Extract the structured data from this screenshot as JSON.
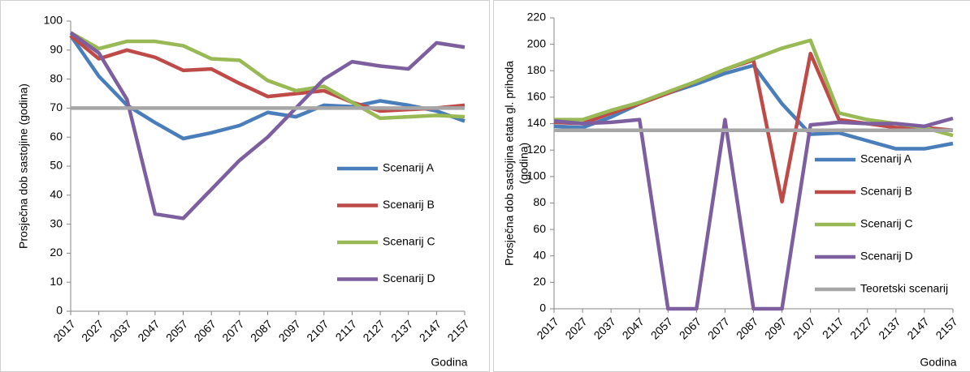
{
  "chart_data": [
    {
      "type": "line",
      "xlabel": "Godina",
      "ylabel": [
        "Prosječna dob sastojine (godina)"
      ],
      "categories": [
        "2017",
        "2027",
        "2037",
        "2047",
        "2057",
        "2067",
        "2077",
        "2087",
        "2097",
        "2107",
        "2117",
        "2127",
        "2137",
        "2147",
        "2157"
      ],
      "ylim": [
        0,
        100
      ],
      "yticks": [
        0,
        10,
        20,
        30,
        40,
        50,
        60,
        70,
        80,
        90,
        100
      ],
      "series": [
        {
          "name": "Scenarij A",
          "color": "#4a7ebb",
          "values": [
            95,
            81,
            71,
            65,
            59.5,
            61.5,
            64,
            68.5,
            67,
            71,
            70.5,
            72.5,
            71,
            69,
            65.5
          ]
        },
        {
          "name": "Scenarij B",
          "color": "#be4b48",
          "values": [
            95,
            87,
            90,
            87.5,
            83,
            83.5,
            78.5,
            74,
            75,
            76,
            72,
            69,
            69.5,
            70,
            71
          ]
        },
        {
          "name": "Scenarij C",
          "color": "#98b954",
          "values": [
            96,
            90.5,
            93,
            93,
            91.5,
            87,
            86.5,
            79.5,
            76,
            77.5,
            72,
            66.5,
            67,
            67.5,
            67
          ]
        },
        {
          "name": "Scenarij D",
          "color": "#7d5fa0",
          "values": [
            96,
            89,
            73,
            33.5,
            32,
            42,
            52,
            60,
            70,
            80,
            86,
            84.5,
            83.5,
            92.5,
            91
          ]
        },
        {
          "color": "#a6a6a6",
          "values": [
            70,
            70,
            70,
            70,
            70,
            70,
            70,
            70,
            70,
            70,
            70,
            70,
            70,
            70,
            70
          ]
        }
      ]
    },
    {
      "type": "line",
      "xlabel": "Godina",
      "ylabel": [
        "Prosječna dob sastojina etata  gl. prihoda",
        "(godina)"
      ],
      "categories": [
        "2017",
        "2027",
        "2037",
        "2047",
        "2057",
        "2067",
        "2077",
        "2087",
        "2097",
        "2107",
        "2117",
        "2127",
        "2137",
        "2147",
        "2157"
      ],
      "ylim": [
        0,
        220
      ],
      "yticks": [
        0,
        20,
        40,
        60,
        80,
        100,
        120,
        140,
        160,
        180,
        200,
        220
      ],
      "series": [
        {
          "name": "Scenarij A",
          "color": "#4a7ebb",
          "values": [
            138,
            137,
            145,
            155,
            163,
            170,
            178,
            184,
            155,
            132,
            133,
            127,
            121,
            121,
            125
          ]
        },
        {
          "name": "Scenarij B",
          "color": "#be4b48",
          "values": [
            141,
            140,
            148,
            155,
            163,
            172,
            181,
            188,
            81,
            193,
            143,
            140,
            137,
            137,
            135
          ]
        },
        {
          "name": "Scenarij C",
          "color": "#98b954",
          "values": [
            143,
            143,
            150,
            156,
            164,
            172,
            181,
            189,
            197,
            203,
            148,
            143,
            140,
            137,
            131
          ]
        },
        {
          "name": "Scenarij D",
          "color": "#7d5fa0",
          "values": [
            142,
            140,
            141,
            143,
            0,
            0,
            143,
            0,
            0,
            139,
            141,
            140,
            140,
            138,
            144
          ]
        },
        {
          "name": "Teoretski scenarij",
          "color": "#a6a6a6",
          "values": [
            135,
            135,
            135,
            135,
            135,
            135,
            135,
            135,
            135,
            135,
            135,
            135,
            135,
            135,
            135
          ]
        }
      ]
    }
  ]
}
